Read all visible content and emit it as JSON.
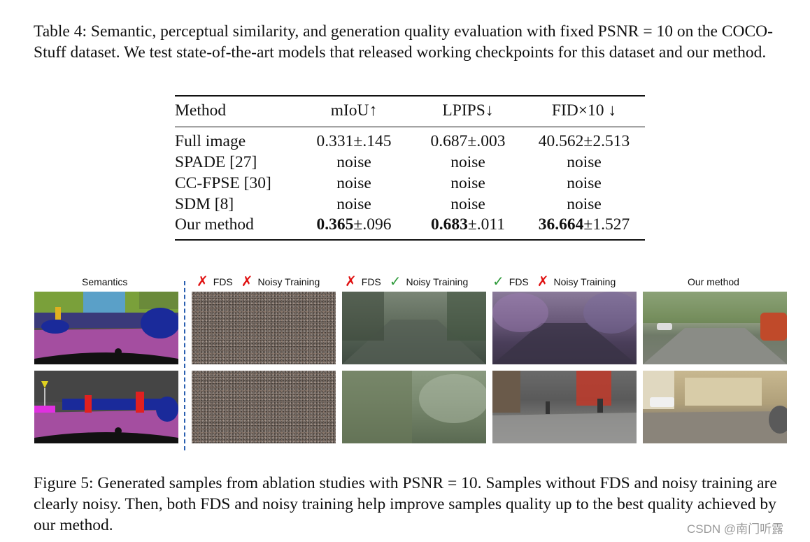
{
  "table_caption": "Table 4: Semantic, perceptual similarity, and generation quality evaluation with fixed PSNR = 10 on the COCO-Stuff dataset. We test state-of-the-art models that released working checkpoints for this dataset and our method.",
  "table": {
    "headers": [
      "Method",
      "mIoU↑",
      "LPIPS↓",
      "FID×10 ↓"
    ],
    "rows": [
      {
        "method": "Full image",
        "miou": "0.331±.145",
        "lpips": "0.687±.003",
        "fid": "40.562±2.513"
      },
      {
        "method": "SPADE [27]",
        "miou": "noise",
        "lpips": "noise",
        "fid": "noise"
      },
      {
        "method": "CC-FPSE [30]",
        "miou": "noise",
        "lpips": "noise",
        "fid": "noise"
      },
      {
        "method": "SDM [8]",
        "miou": "noise",
        "lpips": "noise",
        "fid": "noise"
      },
      {
        "method": "Our method",
        "miou_bold": "0.365",
        "miou_rest": "±.096",
        "lpips_bold": "0.683",
        "lpips_rest": "±.011",
        "fid_bold": "36.664",
        "fid_rest": "±1.527"
      }
    ]
  },
  "figure": {
    "columns": {
      "semantics": "Semantics",
      "col1": {
        "a": "FDS",
        "b": "Noisy Training"
      },
      "col2": {
        "a": "FDS",
        "b": "Noisy Training"
      },
      "col3": {
        "a": "FDS",
        "b": "Noisy Training"
      },
      "ours": "Our method"
    },
    "marks": {
      "cross": "✗",
      "check": "✓"
    }
  },
  "figure_caption": "Figure 5: Generated samples from ablation studies with PSNR = 10. Samples without FDS and noisy training are clearly noisy. Then, both FDS and noisy training help improve samples quality up to the best quality achieved by our method.",
  "watermark": "CSDN @南门听露"
}
